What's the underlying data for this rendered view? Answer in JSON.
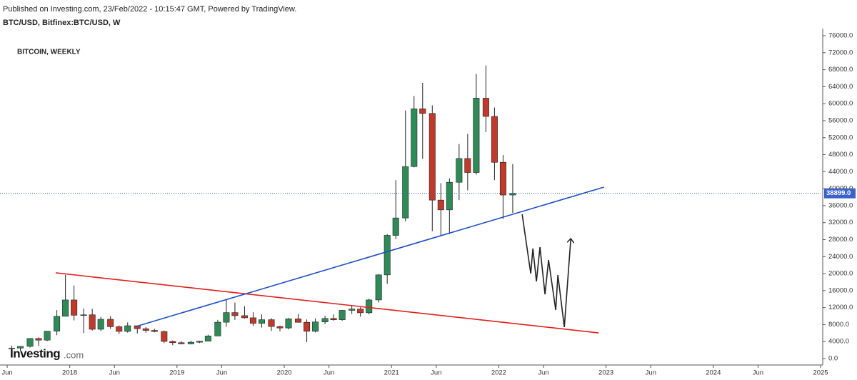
{
  "header": "Published on Investing.com, 23/Feb/2022 - 10:15:47 GMT, Powered by TradingView.",
  "symbol": "BTC/USD, Bitfinex:BTC/USD, W",
  "logo": {
    "name": "Investing",
    "suffix": ".com"
  },
  "chart_data": {
    "type": "candlestick",
    "title": "BITCOIN, WEEKLY",
    "up_color": "#2e8b57",
    "down_color": "#c0392b",
    "x": [
      2017.46,
      2017.54,
      2017.63,
      2017.71,
      2017.79,
      2017.88,
      2017.96,
      2018.04,
      2018.13,
      2018.21,
      2018.29,
      2018.38,
      2018.46,
      2018.54,
      2018.63,
      2018.71,
      2018.79,
      2018.88,
      2018.96,
      2019.04,
      2019.13,
      2019.21,
      2019.29,
      2019.38,
      2019.46,
      2019.54,
      2019.63,
      2019.71,
      2019.79,
      2019.88,
      2019.96,
      2020.04,
      2020.13,
      2020.21,
      2020.29,
      2020.38,
      2020.46,
      2020.54,
      2020.63,
      2020.71,
      2020.79,
      2020.88,
      2020.96,
      2021.04,
      2021.13,
      2021.21,
      2021.29,
      2021.38,
      2021.46,
      2021.54,
      2021.63,
      2021.71,
      2021.79,
      2021.88,
      2021.96,
      2022.04,
      2022.13
    ],
    "open": [
      2400,
      2480,
      2870,
      4730,
      4340,
      6450,
      9950,
      13800,
      10200,
      10300,
      6900,
      9250,
      7500,
      6400,
      7730,
      7030,
      6630,
      6370,
      4040,
      3740,
      3460,
      3850,
      4100,
      5320,
      8560,
      10820,
      10100,
      9600,
      8300,
      9150,
      7550,
      7200,
      9350,
      8540,
      6420,
      8620,
      9450,
      9140,
      11350,
      11660,
      10780,
      13800,
      19700,
      29000,
      33100,
      45200,
      58800,
      57700,
      37300,
      35000,
      41500,
      47100,
      43800,
      61300,
      57000,
      46200,
      38500
    ],
    "high": [
      3000,
      2950,
      4770,
      4980,
      6470,
      11400,
      19700,
      17200,
      11800,
      11700,
      9800,
      10000,
      7800,
      8500,
      7760,
      7420,
      7000,
      6600,
      4250,
      4100,
      4200,
      4150,
      5600,
      9100,
      13800,
      13200,
      12300,
      10900,
      10400,
      9500,
      7750,
      9550,
      10500,
      9200,
      9450,
      10100,
      10400,
      11450,
      12480,
      12100,
      14100,
      19900,
      29300,
      42000,
      58400,
      61800,
      64900,
      59600,
      41300,
      42400,
      50500,
      52900,
      67000,
      69000,
      59100,
      47900,
      45800
    ],
    "low": [
      1900,
      1830,
      2600,
      2950,
      4100,
      5500,
      10400,
      9000,
      6000,
      6600,
      6500,
      7000,
      5800,
      6100,
      5900,
      6100,
      6200,
      3650,
      3150,
      3350,
      3350,
      3650,
      4050,
      5300,
      7500,
      9100,
      9400,
      7700,
      7300,
      6500,
      6400,
      6850,
      8450,
      3850,
      6150,
      8100,
      8900,
      8900,
      10500,
      9850,
      10400,
      13200,
      17600,
      28100,
      32300,
      45000,
      47000,
      30000,
      28800,
      29300,
      37300,
      39600,
      43300,
      53300,
      42000,
      32900,
      34300
    ],
    "close": [
      2480,
      2870,
      4730,
      4340,
      6450,
      9950,
      13800,
      10200,
      10300,
      6900,
      9250,
      7500,
      6400,
      7730,
      7030,
      6630,
      6370,
      4040,
      3740,
      3460,
      3850,
      4100,
      5320,
      8560,
      10820,
      10100,
      9600,
      8300,
      9150,
      7550,
      7200,
      9350,
      8540,
      6420,
      8620,
      9450,
      9140,
      11350,
      11660,
      10780,
      13800,
      19700,
      29000,
      33100,
      45200,
      58800,
      57700,
      37300,
      35000,
      41500,
      47100,
      43800,
      61300,
      57000,
      46200,
      38500,
      38899
    ],
    "last_price": 38899,
    "last_price_label": "38899.0",
    "drawings": [
      {
        "color": "#e0201b",
        "points": [
          [
            2017.87,
            20180
          ],
          [
            2022.93,
            6050
          ]
        ]
      },
      {
        "color": "#1f4fc4",
        "points": [
          [
            2018.62,
            7570
          ],
          [
            2022.98,
            40360
          ]
        ]
      },
      {
        "color": "#222222",
        "arrow": true,
        "points": [
          [
            2022.218,
            33970
          ],
          [
            2022.298,
            20010
          ],
          [
            2022.318,
            25900
          ],
          [
            2022.351,
            18160
          ],
          [
            2022.384,
            26230
          ],
          [
            2022.431,
            15130
          ],
          [
            2022.464,
            23200
          ],
          [
            2022.531,
            11430
          ],
          [
            2022.551,
            19670
          ],
          [
            2022.611,
            7400
          ],
          [
            2022.671,
            28080
          ]
        ]
      }
    ],
    "xlim": [
      2017.35,
      2025.02
    ],
    "xticks": [
      {
        "value": 2017.417,
        "label": "Jun"
      },
      2018,
      {
        "value": 2018.417,
        "label": "Jun"
      },
      2019,
      {
        "value": 2019.417,
        "label": "Jun"
      },
      2020,
      {
        "value": 2020.417,
        "label": "Jun"
      },
      2021,
      {
        "value": 2021.417,
        "label": "Jun"
      },
      2022,
      {
        "value": 2022.417,
        "label": "Jun"
      },
      2023,
      {
        "value": 2023.417,
        "label": "Jun"
      },
      2024,
      {
        "value": 2024.417,
        "label": "Jun"
      },
      2025
    ],
    "ylim": [
      0,
      76000
    ],
    "yticks": [
      {
        "value": 0,
        "label": "0.0"
      },
      {
        "value": 4000,
        "label": "4000.0"
      },
      {
        "value": 8000,
        "label": "8000.0"
      },
      {
        "value": 12000,
        "label": "12000.0"
      },
      {
        "value": 16000,
        "label": "16000.0"
      },
      {
        "value": 20000,
        "label": "20000.0"
      },
      {
        "value": 24000,
        "label": "24000.0"
      },
      {
        "value": 28000,
        "label": "28000.0"
      },
      {
        "value": 32000,
        "label": "32000.0"
      },
      {
        "value": 36000,
        "label": "36000.0"
      },
      {
        "value": 40000,
        "label": "40000.0"
      },
      {
        "value": 44000,
        "label": "44000.0"
      },
      {
        "value": 48000,
        "label": "48000.0"
      },
      {
        "value": 52000,
        "label": "52000.0"
      },
      {
        "value": 56000,
        "label": "56000.0"
      },
      {
        "value": 60000,
        "label": "60000.0"
      },
      {
        "value": 64000,
        "label": "64000.0"
      },
      {
        "value": 68000,
        "label": "68000.0"
      },
      {
        "value": 72000,
        "label": "72000.0"
      },
      {
        "value": 76000,
        "label": "76000.0"
      }
    ]
  }
}
